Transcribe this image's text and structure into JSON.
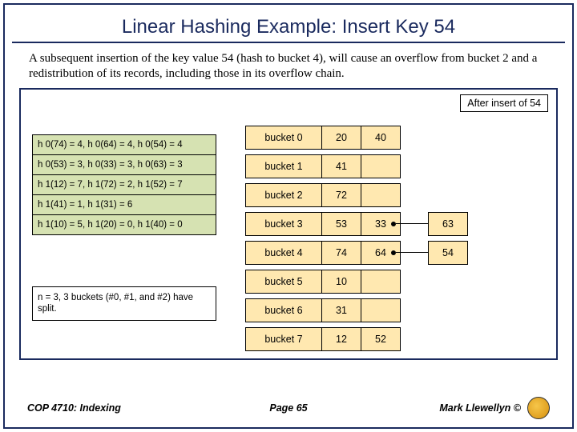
{
  "title": "Linear Hashing Example: Insert Key 54",
  "intro": "A subsequent insertion of the key value 54 (hash to bucket 4), will cause an overflow from bucket 2 and a redistribution of its records, including those in its overflow chain.",
  "badge": "After insert of 54",
  "hash_rows": [
    "h 0(74) = 4, h 0(64) = 4, h 0(54) = 4",
    "h 0(53) = 3, h 0(33) = 3, h 0(63) = 3",
    "h 1(12) = 7, h 1(72) = 2, h 1(52) = 7",
    "h 1(41) = 1, h 1(31) = 6",
    "h 1(10) = 5, h 1(20) = 0, h 1(40) = 0"
  ],
  "note": "n = 3, 3 buckets (#0, #1, and #2) have split.",
  "buckets": [
    {
      "label": "bucket 0",
      "cells": [
        "20",
        "40"
      ]
    },
    {
      "label": "bucket 1",
      "cells": [
        "41"
      ]
    },
    {
      "label": "bucket 2",
      "cells": [
        "72"
      ]
    },
    {
      "label": "bucket 3",
      "cells": [
        "53",
        "33"
      ],
      "overflow": "63"
    },
    {
      "label": "bucket 4",
      "cells": [
        "74",
        "64"
      ],
      "overflow": "54"
    },
    {
      "label": "bucket 5",
      "cells": [
        "10"
      ]
    },
    {
      "label": "bucket 6",
      "cells": [
        "31"
      ]
    },
    {
      "label": "bucket 7",
      "cells": [
        "12",
        "52"
      ]
    }
  ],
  "colors": {
    "frame": "#1a2a5e",
    "hash_bg": "#d6e2b2",
    "bucket_bg": "#ffe8b0"
  },
  "footer": {
    "left": "COP 4710: Indexing",
    "center": "Page 65",
    "right": "Mark Llewellyn ©"
  }
}
